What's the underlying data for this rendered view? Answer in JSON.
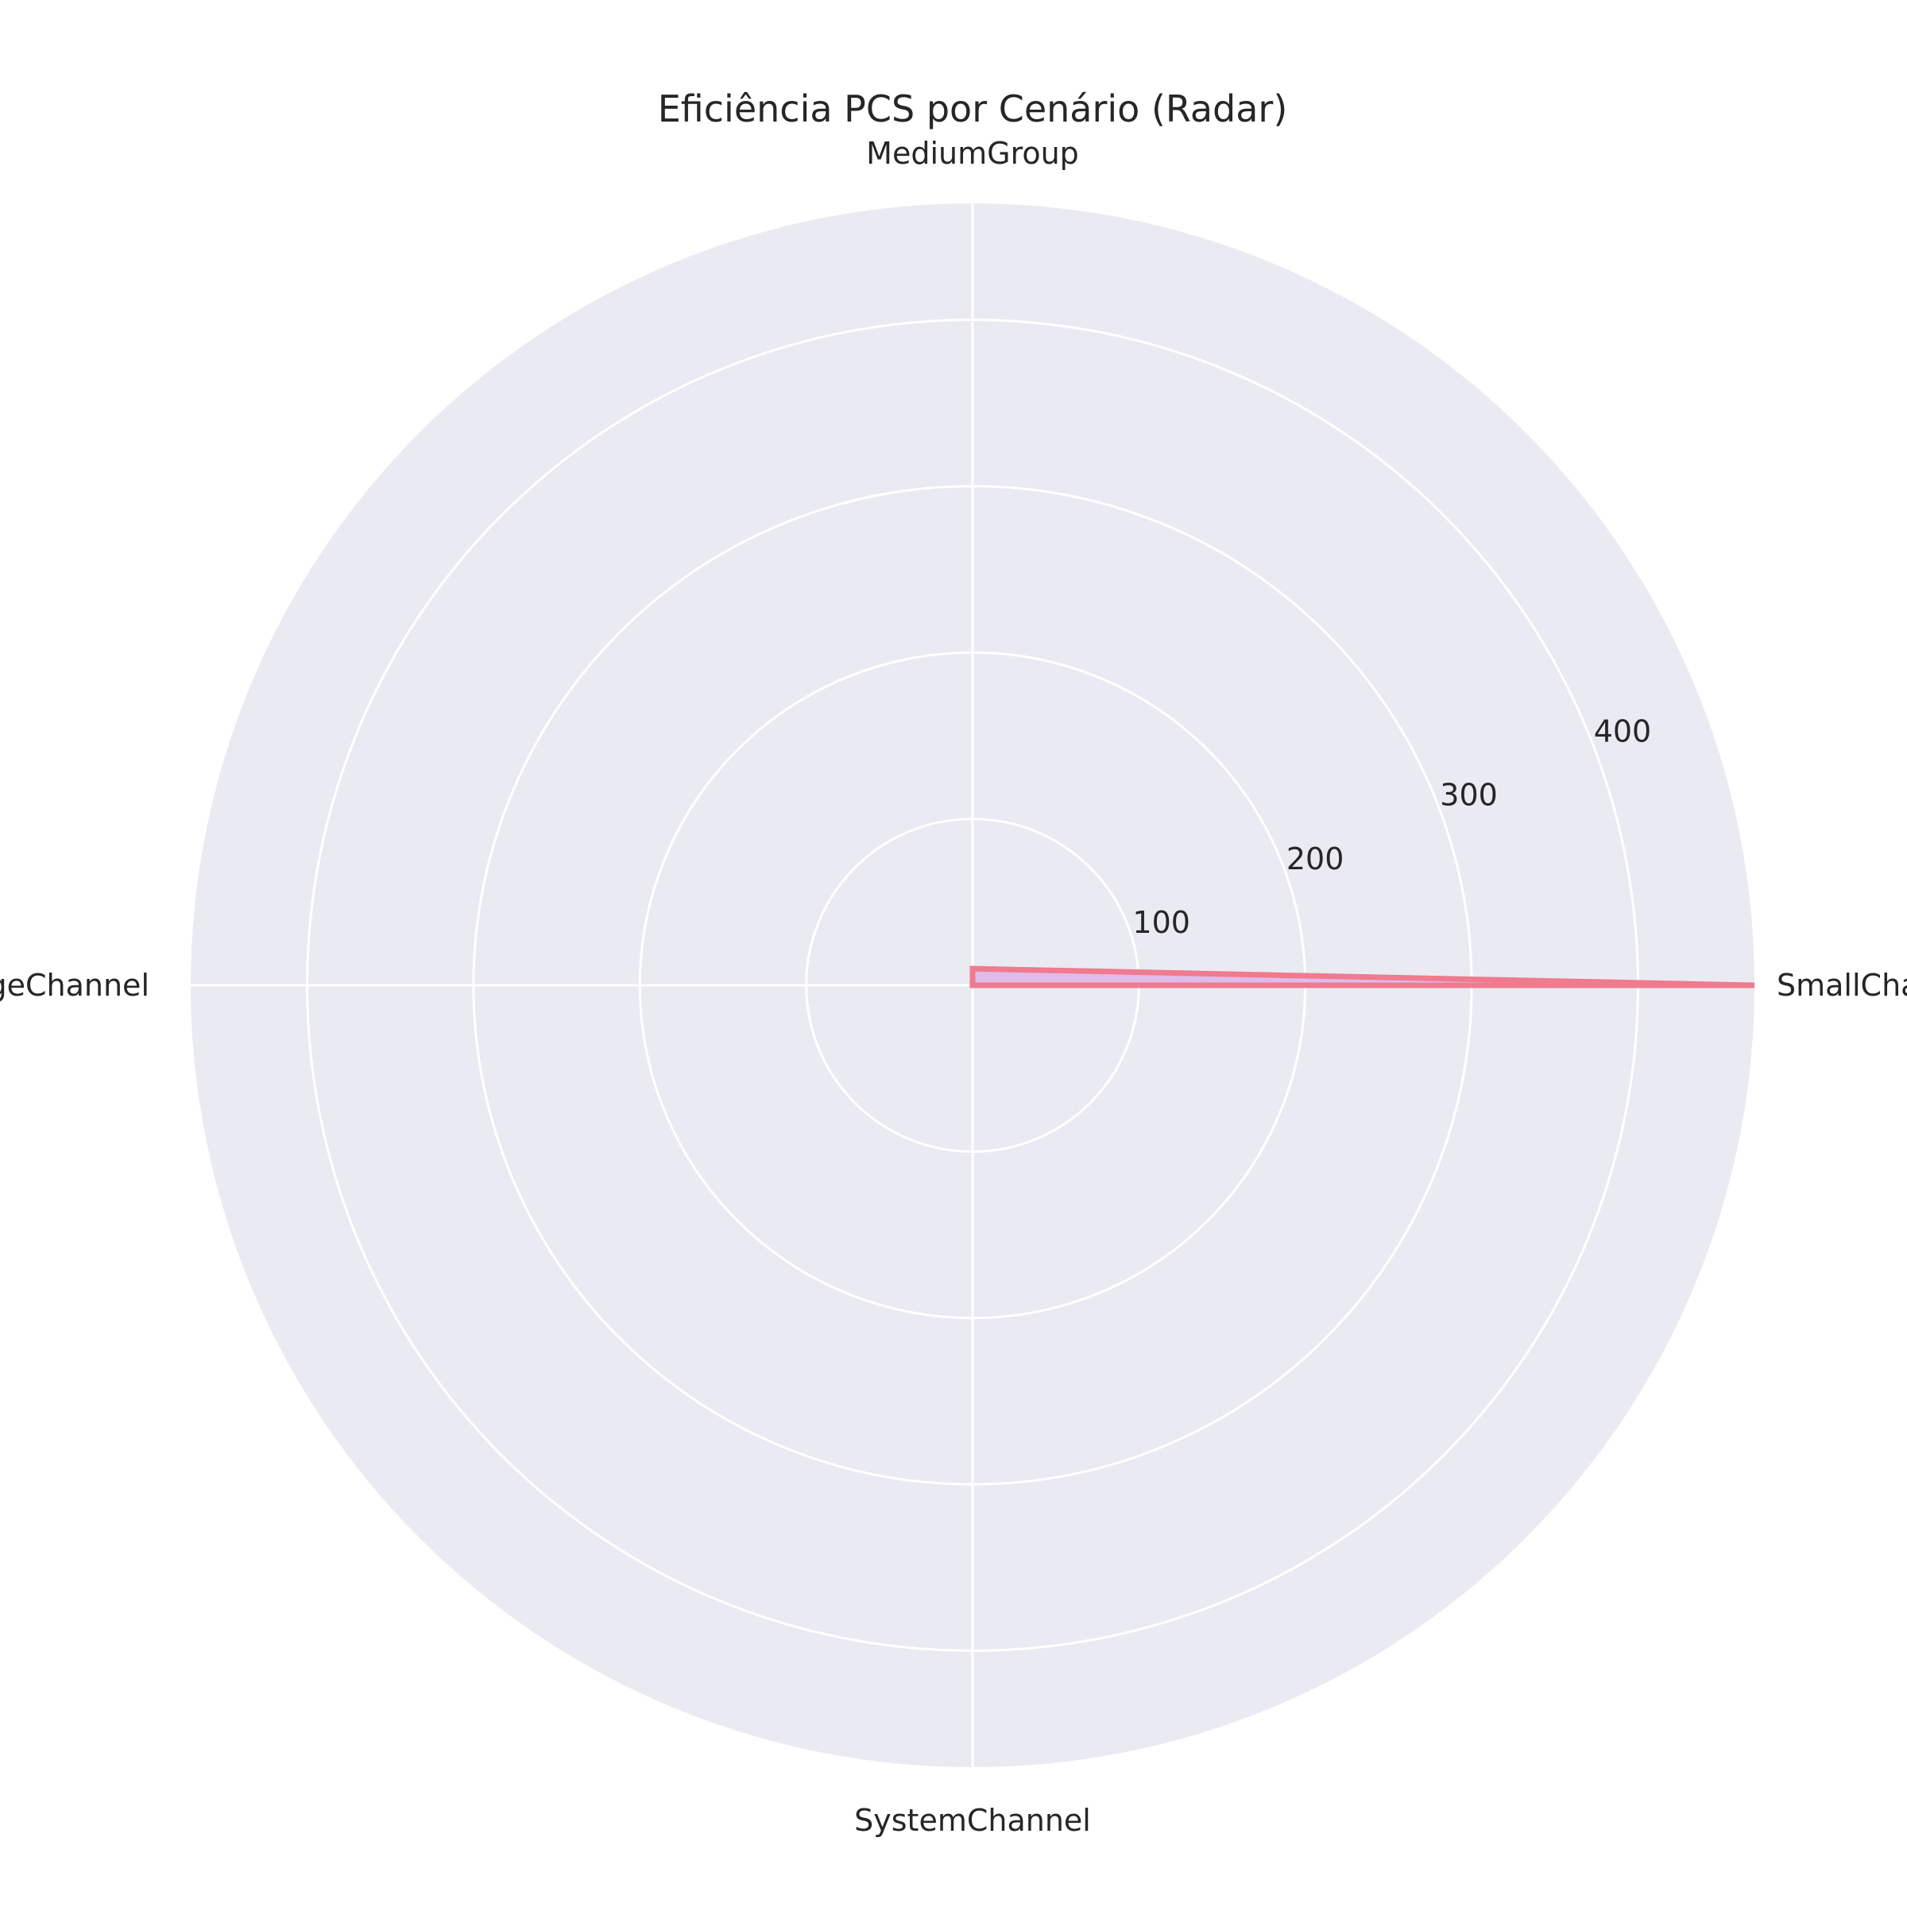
{
  "chart_data": {
    "type": "radar",
    "title": "Eficiência PCS por Cenário (Radar)",
    "categories": [
      "SmallChat",
      "MediumGroup",
      "LargeChannel",
      "SystemChannel"
    ],
    "series": [
      {
        "values": [
          470,
          10,
          0,
          0
        ]
      }
    ],
    "radial_ticks": [
      100,
      200,
      300,
      400
    ],
    "rlim": [
      0,
      470
    ],
    "grid": true,
    "colors": {
      "background": "#eaeaf2",
      "grid": "#ffffff",
      "line": "#f07a8e",
      "fill": "#ddb3e8"
    }
  }
}
